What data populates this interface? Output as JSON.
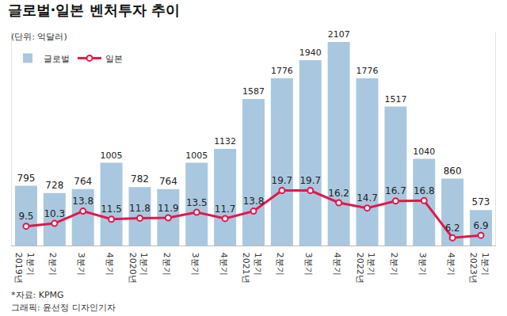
{
  "chart_data": {
    "type": "bar",
    "title": "글로벌·일본 벤처투자 추이",
    "subtitle": "(단위: 억달러)",
    "categories": [
      "1분기\n2019년",
      "2분기",
      "3분기",
      "4분기",
      "1분기\n2020년",
      "2분기",
      "3분기",
      "4분기",
      "1분기\n2021년",
      "2분기",
      "3분기",
      "4분기",
      "1분기\n2022년",
      "2분기",
      "3분기",
      "4분기",
      "1분기\n2023년"
    ],
    "series": [
      {
        "name": "글로벌",
        "type": "bar",
        "color": "#a9c8df",
        "values": [
          795,
          728,
          764,
          1005,
          782,
          764,
          1005,
          1132,
          1587,
          1776,
          1940,
          2107,
          1776,
          1517,
          1040,
          860,
          573
        ]
      },
      {
        "name": "일본",
        "type": "line",
        "color": "#e3174b",
        "axis": "y2",
        "marker": "circle",
        "values": [
          9.5,
          10.3,
          13.8,
          11.5,
          11.8,
          11.9,
          13.5,
          11.7,
          13.8,
          19.7,
          19.7,
          16.2,
          14.7,
          16.7,
          16.8,
          6.2,
          6.9
        ]
      }
    ],
    "ylim": [
      250,
      2200
    ],
    "y2lim": [
      4,
      65
    ],
    "data_labels": true,
    "tick_labels": "x",
    "legend": "top-left",
    "grid": false,
    "annotations": [
      "*자료: KPMG",
      "그래픽: 윤선정 디자인기자"
    ]
  }
}
